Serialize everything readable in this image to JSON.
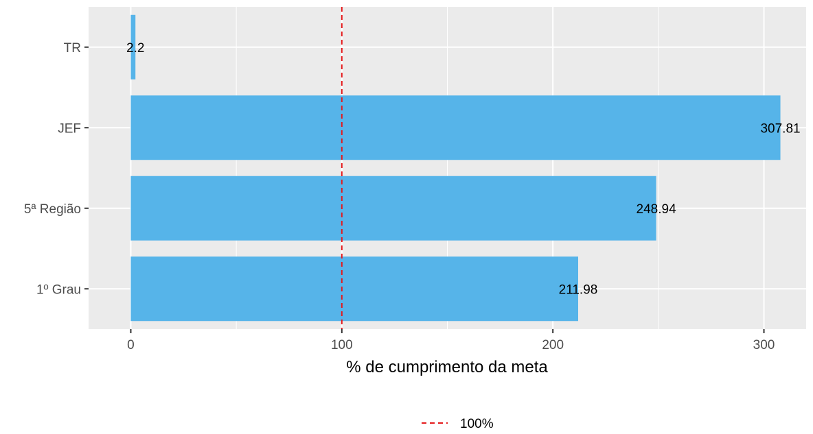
{
  "chart_data": {
    "type": "bar",
    "orientation": "horizontal",
    "categories": [
      "1º Grau",
      "5ª Região",
      "JEF",
      "TR"
    ],
    "values": [
      211.98,
      248.94,
      307.81,
      2.2
    ],
    "value_labels": [
      "211.98",
      "248.94",
      "307.81",
      "2.2"
    ],
    "xlabel": "% de cumprimento da meta",
    "ylabel": "",
    "xlim": [
      -20,
      320
    ],
    "xticks": [
      0,
      100,
      200,
      300
    ],
    "xtick_labels": [
      "0",
      "100",
      "200",
      "300"
    ],
    "grid": true,
    "reference_line": {
      "value": 100,
      "style": "dashed",
      "color": "#e41a1c",
      "legend_label": "100%"
    },
    "legend_position": "bottom",
    "colors": {
      "bar": "#56b4e9",
      "panel": "#ebebeb",
      "grid": "#ffffff",
      "reference": "#e41a1c"
    }
  }
}
